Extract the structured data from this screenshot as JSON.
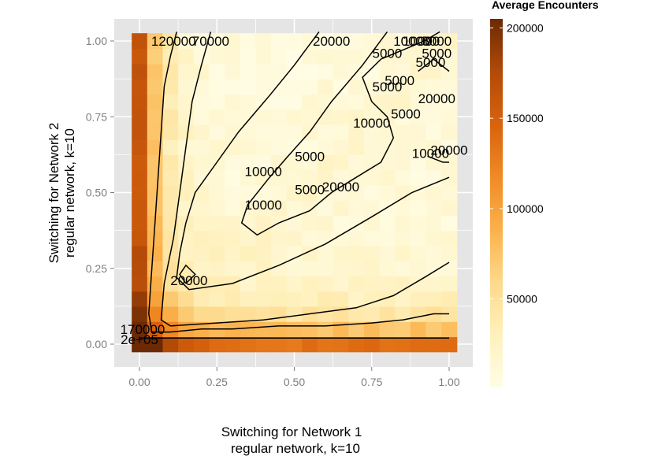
{
  "chart_data": {
    "type": "heatmap",
    "xlabel": [
      "Switching for Network 1",
      "regular network, k=10"
    ],
    "ylabel": [
      "Switching for Network 2",
      "regular network, k=10"
    ],
    "x_ticks": [
      "0.00",
      "0.25",
      "0.50",
      "0.75",
      "1.00"
    ],
    "y_ticks": [
      "0.00",
      "0.25",
      "0.50",
      "0.75",
      "1.00"
    ],
    "xlim": [
      -0.05,
      1.05
    ],
    "ylim": [
      -0.05,
      1.05
    ],
    "grid_step": 0.05,
    "legend": {
      "title": "Average Encounters",
      "labels": [
        "200000",
        "150000",
        "100000",
        "50000"
      ],
      "values": [
        200000,
        150000,
        100000,
        50000
      ],
      "range": [
        1000,
        205000
      ],
      "placement": "right"
    },
    "color_scale": [
      "#fffde6",
      "#fff1bd",
      "#fdd98a",
      "#fbb14b",
      "#f08a24",
      "#d9620d",
      "#b24a08",
      "#6b2a04"
    ],
    "contour_labels": [
      {
        "text": "120000",
        "x": 0.11,
        "y": 1.0
      },
      {
        "text": "70000",
        "x": 0.23,
        "y": 1.0
      },
      {
        "text": "20000",
        "x": 0.62,
        "y": 1.0
      },
      {
        "text": "10000",
        "x": 0.88,
        "y": 1.0
      },
      {
        "text": "10000",
        "x": 0.91,
        "y": 1.0
      },
      {
        "text": "5000",
        "x": 0.96,
        "y": 1.0
      },
      {
        "text": "5000",
        "x": 0.8,
        "y": 0.96
      },
      {
        "text": "5000",
        "x": 0.96,
        "y": 0.96
      },
      {
        "text": "5000",
        "x": 0.94,
        "y": 0.93
      },
      {
        "text": "5000",
        "x": 0.84,
        "y": 0.87
      },
      {
        "text": "5000",
        "x": 0.8,
        "y": 0.85
      },
      {
        "text": "20000",
        "x": 0.96,
        "y": 0.81
      },
      {
        "text": "5000",
        "x": 0.86,
        "y": 0.76
      },
      {
        "text": "10000",
        "x": 0.75,
        "y": 0.73
      },
      {
        "text": "10000",
        "x": 0.94,
        "y": 0.63
      },
      {
        "text": "20000",
        "x": 1.0,
        "y": 0.64
      },
      {
        "text": "5000",
        "x": 0.55,
        "y": 0.62
      },
      {
        "text": "10000",
        "x": 0.4,
        "y": 0.57
      },
      {
        "text": "5000",
        "x": 0.55,
        "y": 0.51
      },
      {
        "text": "20000",
        "x": 0.65,
        "y": 0.52
      },
      {
        "text": "10000",
        "x": 0.4,
        "y": 0.46
      },
      {
        "text": "20000",
        "x": 0.16,
        "y": 0.21
      },
      {
        "text": "170000",
        "x": 0.01,
        "y": 0.05
      },
      {
        "text": "2e+05",
        "x": 0.0,
        "y": 0.015
      }
    ],
    "contours": [
      [
        [
          0.0,
          0.02
        ],
        [
          0.06,
          0.02
        ],
        [
          0.2,
          0.02
        ],
        [
          0.35,
          0.02
        ],
        [
          0.5,
          0.02
        ],
        [
          0.65,
          0.02
        ],
        [
          0.8,
          0.02
        ],
        [
          0.9,
          0.02
        ],
        [
          1.0,
          0.02
        ]
      ],
      [
        [
          0.12,
          1.03
        ],
        [
          0.1,
          0.95
        ],
        [
          0.08,
          0.85
        ],
        [
          0.07,
          0.7
        ],
        [
          0.06,
          0.55
        ],
        [
          0.05,
          0.4
        ],
        [
          0.04,
          0.25
        ],
        [
          0.03,
          0.1
        ],
        [
          0.04,
          0.04
        ]
      ],
      [
        [
          0.04,
          0.04
        ],
        [
          0.1,
          0.04
        ],
        [
          0.2,
          0.05
        ],
        [
          0.3,
          0.05
        ],
        [
          0.45,
          0.06
        ],
        [
          0.6,
          0.06
        ],
        [
          0.75,
          0.07
        ],
        [
          0.85,
          0.08
        ],
        [
          0.95,
          0.1
        ],
        [
          1.0,
          0.1
        ]
      ],
      [
        [
          0.23,
          1.03
        ],
        [
          0.2,
          0.92
        ],
        [
          0.17,
          0.8
        ],
        [
          0.15,
          0.65
        ],
        [
          0.13,
          0.5
        ],
        [
          0.11,
          0.35
        ],
        [
          0.08,
          0.2
        ],
        [
          0.07,
          0.08
        ],
        [
          0.1,
          0.06
        ]
      ],
      [
        [
          0.1,
          0.06
        ],
        [
          0.25,
          0.07
        ],
        [
          0.4,
          0.08
        ],
        [
          0.55,
          0.1
        ],
        [
          0.7,
          0.12
        ],
        [
          0.82,
          0.16
        ],
        [
          0.92,
          0.22
        ],
        [
          1.0,
          0.27
        ]
      ],
      [
        [
          0.58,
          1.03
        ],
        [
          0.5,
          0.92
        ],
        [
          0.42,
          0.82
        ],
        [
          0.32,
          0.7
        ],
        [
          0.25,
          0.6
        ],
        [
          0.18,
          0.5
        ],
        [
          0.15,
          0.4
        ],
        [
          0.13,
          0.3
        ],
        [
          0.12,
          0.22
        ],
        [
          0.16,
          0.18
        ],
        [
          0.3,
          0.2
        ],
        [
          0.45,
          0.26
        ],
        [
          0.6,
          0.33
        ],
        [
          0.75,
          0.42
        ],
        [
          0.88,
          0.5
        ],
        [
          1.0,
          0.55
        ]
      ],
      [
        [
          0.8,
          1.03
        ],
        [
          0.72,
          0.92
        ],
        [
          0.62,
          0.8
        ],
        [
          0.55,
          0.7
        ],
        [
          0.48,
          0.62
        ],
        [
          0.42,
          0.55
        ],
        [
          0.35,
          0.46
        ],
        [
          0.33,
          0.4
        ],
        [
          0.38,
          0.36
        ],
        [
          0.45,
          0.4
        ],
        [
          0.55,
          0.44
        ],
        [
          0.62,
          0.5
        ],
        [
          0.7,
          0.55
        ],
        [
          0.78,
          0.6
        ],
        [
          0.82,
          0.68
        ],
        [
          0.8,
          0.75
        ],
        [
          0.75,
          0.8
        ],
        [
          0.72,
          0.88
        ],
        [
          0.78,
          0.94
        ],
        [
          0.85,
          0.97
        ],
        [
          0.92,
          1.0
        ],
        [
          0.97,
          1.03
        ]
      ],
      [
        [
          0.9,
          0.9
        ],
        [
          0.95,
          0.94
        ],
        [
          1.0,
          0.9
        ]
      ],
      [
        [
          0.93,
          0.62
        ],
        [
          0.98,
          0.6
        ],
        [
          1.0,
          0.6
        ]
      ],
      [
        [
          0.15,
          0.2
        ],
        [
          0.18,
          0.23
        ],
        [
          0.15,
          0.26
        ],
        [
          0.13,
          0.23
        ],
        [
          0.15,
          0.2
        ]
      ]
    ]
  }
}
